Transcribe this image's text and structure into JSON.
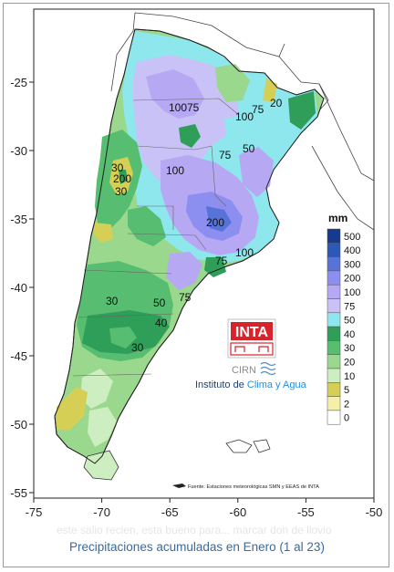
{
  "map": {
    "units": "mm",
    "x_ticks": [
      "-75",
      "-70",
      "-65",
      "-60",
      "-55",
      "-50"
    ],
    "y_ticks": [
      "-25",
      "-30",
      "-35",
      "-40",
      "-45",
      "-50",
      "-55"
    ],
    "legend": [
      {
        "label": "500",
        "color": "#173a8c"
      },
      {
        "label": "400",
        "color": "#2c58b8"
      },
      {
        "label": "300",
        "color": "#5773d8"
      },
      {
        "label": "200",
        "color": "#8c8ef0"
      },
      {
        "label": "100",
        "color": "#b6a8f3"
      },
      {
        "label": "75",
        "color": "#c9c2f7"
      },
      {
        "label": "50",
        "color": "#8ee7ec"
      },
      {
        "label": "40",
        "color": "#2e9e58"
      },
      {
        "label": "30",
        "color": "#57bd70"
      },
      {
        "label": "20",
        "color": "#9ad88e"
      },
      {
        "label": "10",
        "color": "#cdeec0"
      },
      {
        "label": "5",
        "color": "#d6cf55"
      },
      {
        "label": "2",
        "color": "#f5f0a8"
      },
      {
        "label": "0",
        "color": "#ffffff"
      }
    ],
    "contour_labels": [
      "100",
      "75",
      "100",
      "75",
      "50",
      "75",
      "100",
      "200",
      "100",
      "75",
      "50",
      "40",
      "30",
      "30",
      "30",
      "200",
      "30",
      "20",
      "75"
    ],
    "logo_text": "INTA",
    "cirn_text": "CIRN",
    "institute_text_a": "Instituto de ",
    "institute_text_b": "Clima y Agua",
    "source_note": "Fuente: Estaciones meteorológicas SMN y EEAS de INTA",
    "bg_text": "este salio recien, esta bueno para... marcar don de llovio"
  },
  "caption": "Precipitaciones acumuladas en Enero (1 al 23)"
}
